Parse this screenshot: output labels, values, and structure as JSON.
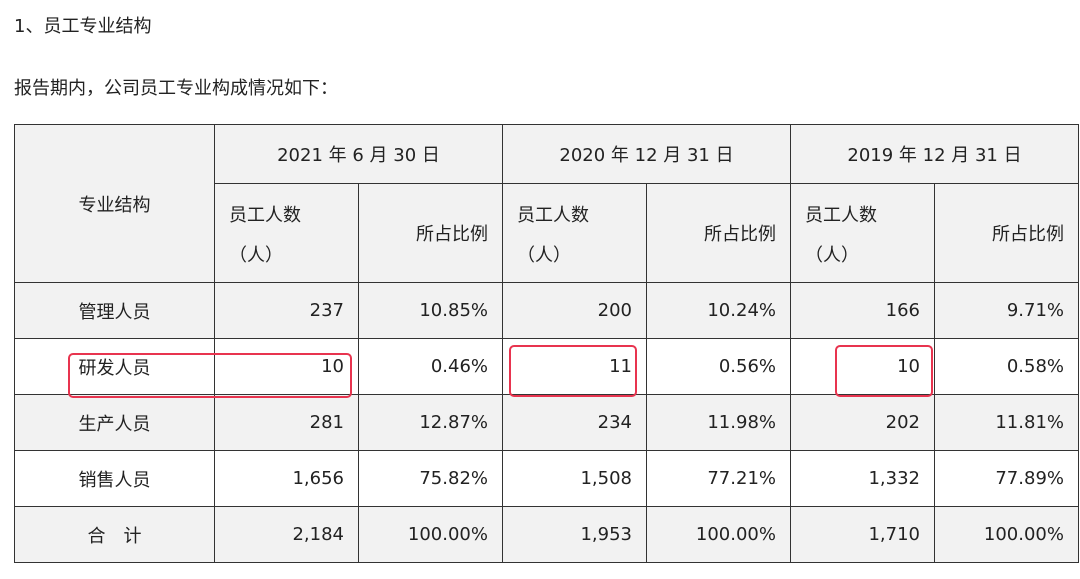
{
  "heading": "1、员工专业结构",
  "intro": "报告期内，公司员工专业构成情况如下：",
  "table": {
    "struct_header": "专业结构",
    "periods": [
      "2021 年 6 月 30 日",
      "2020 年 12 月 31 日",
      "2019 年 12 月 31 日"
    ],
    "count_header_line1": "员工人数",
    "count_header_line2": "（人）",
    "ratio_header": "所占比例",
    "rows": [
      {
        "category": "管理人员",
        "values": [
          "237",
          "10.85%",
          "200",
          "10.24%",
          "166",
          "9.71%"
        ]
      },
      {
        "category": "研发人员",
        "values": [
          "10",
          "0.46%",
          "11",
          "0.56%",
          "10",
          "0.58%"
        ]
      },
      {
        "category": "生产人员",
        "values": [
          "281",
          "12.87%",
          "234",
          "11.98%",
          "202",
          "11.81%"
        ]
      },
      {
        "category": "销售人员",
        "values": [
          "1,656",
          "75.82%",
          "1,508",
          "77.21%",
          "1,332",
          "77.89%"
        ]
      },
      {
        "category": "合　计",
        "values": [
          "2,184",
          "100.00%",
          "1,953",
          "100.00%",
          "1,710",
          "100.00%"
        ]
      }
    ]
  },
  "highlight_color": "#e8344f"
}
